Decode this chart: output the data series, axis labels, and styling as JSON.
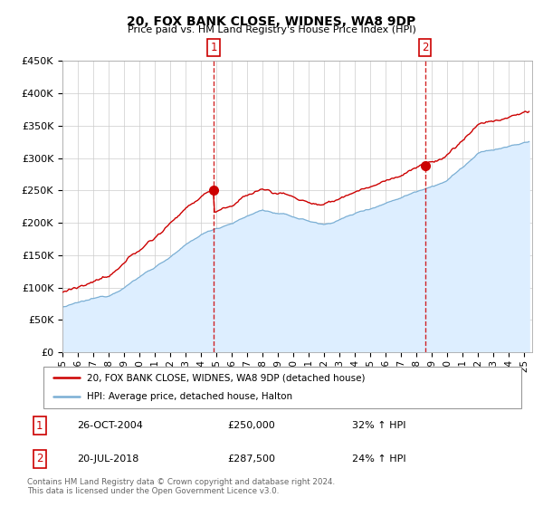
{
  "title": "20, FOX BANK CLOSE, WIDNES, WA8 9DP",
  "subtitle": "Price paid vs. HM Land Registry's House Price Index (HPI)",
  "y_min": 0,
  "y_max": 450000,
  "y_ticks": [
    0,
    50000,
    100000,
    150000,
    200000,
    250000,
    300000,
    350000,
    400000,
    450000
  ],
  "y_tick_labels": [
    "£0",
    "£50K",
    "£100K",
    "£150K",
    "£200K",
    "£250K",
    "£300K",
    "£350K",
    "£400K",
    "£450K"
  ],
  "sale1_year": 2004.82,
  "sale1_price": 250000,
  "sale2_year": 2018.55,
  "sale2_price": 287500,
  "red_line_color": "#cc0000",
  "blue_line_color": "#7bafd4",
  "blue_fill_color": "#ddeeff",
  "dashed_line_color": "#cc0000",
  "legend1_label": "20, FOX BANK CLOSE, WIDNES, WA8 9DP (detached house)",
  "legend2_label": "HPI: Average price, detached house, Halton",
  "footer": "Contains HM Land Registry data © Crown copyright and database right 2024.\nThis data is licensed under the Open Government Licence v3.0.",
  "table_row1": [
    "1",
    "26-OCT-2004",
    "£250,000",
    "32% ↑ HPI"
  ],
  "table_row2": [
    "2",
    "20-JUL-2018",
    "£287,500",
    "24% ↑ HPI"
  ]
}
